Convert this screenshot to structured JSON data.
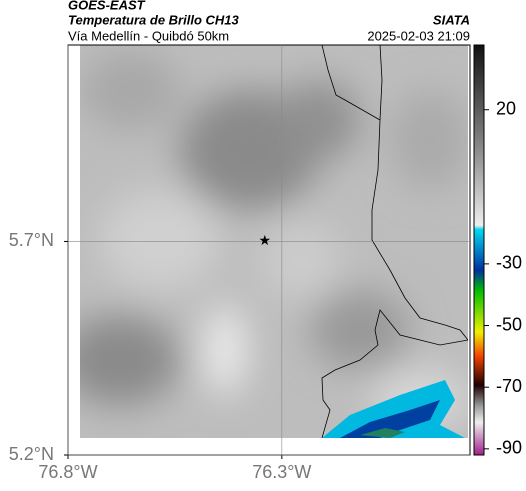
{
  "header": {
    "title": "GOES-EAST",
    "subtitle": "Temperatura de Brillo CH13",
    "region": "Vía Medellín - Quibdó 50km",
    "source": "SIATA",
    "datetime": "2025-02-03 21:09"
  },
  "map": {
    "xlim": [
      -76.8,
      -75.86
    ],
    "ylim": [
      5.2,
      6.16
    ],
    "xticks": [
      {
        "value": -76.8,
        "label": "76.8°W"
      },
      {
        "value": -76.3,
        "label": "76.3°W"
      }
    ],
    "yticks": [
      {
        "value": 5.7,
        "label": "5.7°N"
      },
      {
        "value": 5.2,
        "label": "5.2°N"
      }
    ],
    "marker": {
      "lon": -76.34,
      "lat": 5.7
    },
    "colorbar": {
      "lim": [
        -92,
        41
      ],
      "ticks": [
        20,
        -30,
        -50,
        -70,
        -90
      ]
    }
  }
}
